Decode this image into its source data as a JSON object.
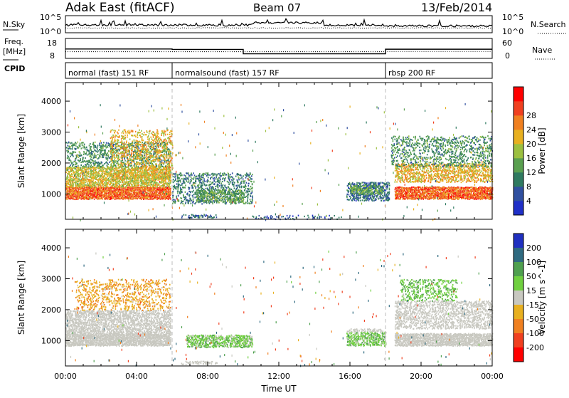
{
  "header": {
    "title": "Adak East (fitACF)",
    "beam": "Beam 07",
    "date": "13/Feb/2014"
  },
  "noise_panel": {
    "left_label": "N.Sky",
    "right_label": "N.Search",
    "left_ticks": [
      "10^5",
      "10^0"
    ],
    "right_ticks": [
      "10^5",
      "10^0"
    ]
  },
  "freq_panel": {
    "left_label_1": "Freq.",
    "left_label_2": "[MHz]",
    "left_ticks": [
      "18",
      "8"
    ],
    "right_label": "Nave",
    "right_ticks": [
      "60",
      "0"
    ],
    "freq_segments_mhz": [
      {
        "start_h": 0.0,
        "end_h": 6.0,
        "value": 12.7
      },
      {
        "start_h": 6.0,
        "end_h": 10.0,
        "value": 12.5
      },
      {
        "start_h": 10.0,
        "end_h": 18.0,
        "value": 10.3
      },
      {
        "start_h": 18.0,
        "end_h": 24.0,
        "value": 12.6
      }
    ],
    "nave_segments": [
      {
        "start_h": 0.0,
        "end_h": 6.0,
        "value": 20
      },
      {
        "start_h": 6.0,
        "end_h": 10.0,
        "value": 20
      },
      {
        "start_h": 10.0,
        "end_h": 18.0,
        "value": 20
      },
      {
        "start_h": 18.0,
        "end_h": 24.0,
        "value": 21
      }
    ]
  },
  "cpid": {
    "label": "CPID",
    "segments": [
      {
        "start_h": 0.0,
        "end_h": 6.0,
        "label": "normal (fast) 151 RF"
      },
      {
        "start_h": 6.0,
        "end_h": 18.0,
        "label": "normalsound (fast) 157 RF"
      },
      {
        "start_h": 18.0,
        "end_h": 24.0,
        "label": "rbsp 200 RF"
      }
    ]
  },
  "chart_data": [
    {
      "type": "heatmap",
      "title": "",
      "xlabel": "Time UT",
      "ylabel": "Slant Range [km]",
      "xlim_h": [
        0,
        24
      ],
      "ylim_km": [
        180,
        4600
      ],
      "x_ticks": [
        "00:00",
        "04:00",
        "08:00",
        "12:00",
        "16:00",
        "20:00",
        "00:00"
      ],
      "y_ticks": [
        "1000",
        "2000",
        "3000",
        "4000"
      ],
      "colorbar": {
        "label": "Power [dB]",
        "ticks": [
          "4",
          "8",
          "12",
          "16",
          "20",
          "24",
          "28"
        ],
        "colors": [
          "#2030c8",
          "#3050a0",
          "#2f7a60",
          "#5aa050",
          "#9cc040",
          "#e8b020",
          "#f08020",
          "#f04020",
          "#ff0000"
        ]
      },
      "regions": [
        {
          "t0": 0.0,
          "t1": 5.9,
          "r0": 850,
          "r1": 1250,
          "value": 28,
          "density": 0.95
        },
        {
          "t0": 0.0,
          "t1": 5.9,
          "r0": 1250,
          "r1": 1900,
          "value": 20,
          "density": 0.7
        },
        {
          "t0": 0.0,
          "t1": 5.9,
          "r0": 1900,
          "r1": 2700,
          "value": 12,
          "density": 0.35
        },
        {
          "t0": 2.5,
          "t1": 6.0,
          "r0": 1500,
          "r1": 3100,
          "value": 22,
          "density": 0.3
        },
        {
          "t0": 6.0,
          "t1": 10.5,
          "r0": 700,
          "r1": 1700,
          "value": 10,
          "density": 0.35
        },
        {
          "t0": 7.3,
          "t1": 10.0,
          "r0": 750,
          "r1": 1150,
          "value": 14,
          "density": 0.55
        },
        {
          "t0": 6.5,
          "t1": 8.5,
          "r0": 250,
          "r1": 350,
          "value": 8,
          "density": 0.5
        },
        {
          "t0": 10.5,
          "t1": 15.5,
          "r0": 200,
          "r1": 330,
          "value": 6,
          "density": 0.2
        },
        {
          "t0": 15.8,
          "t1": 18.2,
          "r0": 800,
          "r1": 1400,
          "value": 8,
          "density": 0.6
        },
        {
          "t0": 16.0,
          "t1": 17.8,
          "r0": 1000,
          "r1": 1300,
          "value": 14,
          "density": 0.5
        },
        {
          "t0": 18.5,
          "t1": 24.0,
          "r0": 850,
          "r1": 1250,
          "value": 28,
          "density": 0.9
        },
        {
          "t0": 18.5,
          "t1": 24.0,
          "r0": 1400,
          "r1": 2000,
          "value": 22,
          "density": 0.55
        },
        {
          "t0": 18.3,
          "t1": 24.0,
          "r0": 1900,
          "r1": 2900,
          "value": 12,
          "density": 0.3
        }
      ]
    },
    {
      "type": "heatmap",
      "title": "",
      "xlabel": "Time UT",
      "ylabel": "Slant Range [km]",
      "xlim_h": [
        0,
        24
      ],
      "ylim_km": [
        180,
        4600
      ],
      "x_ticks": [
        "00:00",
        "04:00",
        "08:00",
        "12:00",
        "16:00",
        "20:00",
        "00:00"
      ],
      "y_ticks": [
        "1000",
        "2000",
        "3000",
        "4000"
      ],
      "colorbar": {
        "label": "Velocity [m s^-1]",
        "ticks": [
          "200",
          "100",
          "50",
          "15",
          "-15",
          "-50",
          "-100",
          "-200"
        ],
        "colors": [
          "#2030c0",
          "#2f6a80",
          "#4fa04f",
          "#70d040",
          "#c8c8c0",
          "#e8b020",
          "#f08020",
          "#f04020",
          "#ff0000"
        ]
      },
      "regions": [
        {
          "t0": 0.0,
          "t1": 5.9,
          "r0": 850,
          "r1": 1250,
          "value": 0,
          "density": 0.95
        },
        {
          "t0": 0.0,
          "t1": 5.9,
          "r0": 1250,
          "r1": 2000,
          "value": 0,
          "density": 0.6
        },
        {
          "t0": 0.5,
          "t1": 5.9,
          "r0": 2000,
          "r1": 3000,
          "value": -40,
          "density": 0.25
        },
        {
          "t0": 6.8,
          "t1": 10.5,
          "r0": 800,
          "r1": 1200,
          "value": 30,
          "density": 0.7
        },
        {
          "t0": 6.5,
          "t1": 8.5,
          "r0": 250,
          "r1": 350,
          "value": 0,
          "density": 0.6
        },
        {
          "t0": 15.8,
          "t1": 18.0,
          "r0": 850,
          "r1": 1300,
          "value": 30,
          "density": 0.6
        },
        {
          "t0": 15.8,
          "t1": 18.0,
          "r0": 1300,
          "r1": 1400,
          "value": 0,
          "density": 0.5
        },
        {
          "t0": 18.5,
          "t1": 24.0,
          "r0": 850,
          "r1": 1250,
          "value": 0,
          "density": 0.9
        },
        {
          "t0": 18.5,
          "t1": 24.0,
          "r0": 1400,
          "r1": 2300,
          "value": 0,
          "density": 0.45
        },
        {
          "t0": 18.8,
          "t1": 22.0,
          "r0": 2300,
          "r1": 3000,
          "value": 40,
          "density": 0.3
        }
      ]
    }
  ]
}
